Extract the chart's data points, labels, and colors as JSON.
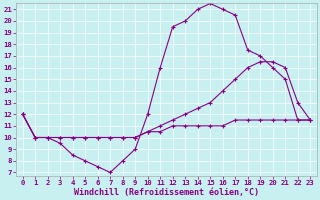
{
  "xlabel": "Windchill (Refroidissement éolien,°C)",
  "bg_color": "#c8f0f0",
  "grid_color": "#ffffff",
  "line_color": "#880088",
  "line1_x": [
    0,
    1,
    2,
    3,
    4,
    5,
    6,
    7,
    8,
    9,
    10,
    11,
    12,
    13,
    14,
    15,
    16,
    17,
    18,
    19,
    20,
    21,
    22,
    23
  ],
  "line1_y": [
    12,
    10,
    10,
    9.5,
    8.5,
    8,
    7.5,
    7,
    8,
    9,
    12,
    16,
    19.5,
    20,
    21,
    21.5,
    21,
    20.5,
    17.5,
    17,
    16,
    15,
    11.5,
    11.5
  ],
  "line2_x": [
    0,
    1,
    2,
    3,
    4,
    5,
    6,
    7,
    8,
    9,
    10,
    11,
    12,
    13,
    14,
    15,
    16,
    17,
    18,
    19,
    20,
    21,
    22,
    23
  ],
  "line2_y": [
    12,
    10,
    10,
    10,
    10,
    10,
    10,
    10,
    10,
    10,
    10.5,
    11,
    11.5,
    12,
    12.5,
    13,
    14,
    15,
    16,
    16.5,
    16.5,
    16,
    13,
    11.5
  ],
  "line3_x": [
    0,
    1,
    2,
    3,
    4,
    5,
    6,
    7,
    8,
    9,
    10,
    11,
    12,
    13,
    14,
    15,
    16,
    17,
    18,
    19,
    20,
    21,
    22,
    23
  ],
  "line3_y": [
    12,
    10,
    10,
    10,
    10,
    10,
    10,
    10,
    10,
    10,
    10.5,
    10.5,
    11,
    11,
    11,
    11,
    11,
    11.5,
    11.5,
    11.5,
    11.5,
    11.5,
    11.5,
    11.5
  ],
  "ylim_min": 6.7,
  "ylim_max": 21.5,
  "xlim_min": -0.5,
  "xlim_max": 23.5,
  "yticks": [
    7,
    8,
    9,
    10,
    11,
    12,
    13,
    14,
    15,
    16,
    17,
    18,
    19,
    20,
    21
  ],
  "xticks": [
    0,
    1,
    2,
    3,
    4,
    5,
    6,
    7,
    8,
    9,
    10,
    11,
    12,
    13,
    14,
    15,
    16,
    17,
    18,
    19,
    20,
    21,
    22,
    23
  ],
  "linewidth": 0.8,
  "markersize": 3.0,
  "tick_fontsize": 5.2,
  "label_fontsize": 6.0
}
